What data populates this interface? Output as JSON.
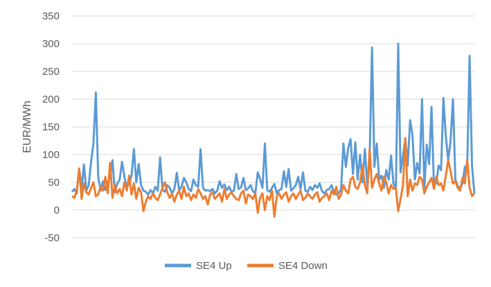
{
  "chart_data": {
    "type": "line",
    "ylabel": "EUR/MWh",
    "xlabel": "",
    "ylim": [
      -50,
      350
    ],
    "yticks": [
      -50,
      0,
      50,
      100,
      150,
      200,
      250,
      300,
      350
    ],
    "grid": true,
    "legend_position": "bottom",
    "x_points": 170,
    "series": [
      {
        "name": "SE4 Up",
        "color": "#5B9BD5",
        "values": [
          33,
          38,
          30,
          75,
          40,
          82,
          35,
          45,
          87,
          120,
          212,
          60,
          35,
          52,
          36,
          50,
          58,
          90,
          32,
          48,
          55,
          87,
          60,
          40,
          48,
          62,
          110,
          50,
          83,
          45,
          35,
          33,
          28,
          36,
          30,
          42,
          35,
          95,
          37,
          33,
          45,
          40,
          30,
          38,
          67,
          35,
          42,
          58,
          50,
          38,
          34,
          55,
          45,
          42,
          110,
          40,
          35,
          36,
          34,
          38,
          30,
          35,
          52,
          40,
          46,
          36,
          42,
          33,
          35,
          65,
          38,
          41,
          58,
          36,
          39,
          45,
          34,
          30,
          68,
          56,
          40,
          120,
          36,
          33,
          40,
          47,
          30,
          36,
          38,
          70,
          42,
          74,
          35,
          39,
          45,
          60,
          38,
          68,
          35,
          33,
          42,
          36,
          45,
          40,
          48,
          34,
          30,
          36,
          38,
          45,
          33,
          28,
          30,
          38,
          120,
          78,
          112,
          128,
          65,
          122,
          55,
          100,
          50,
          110,
          45,
          88,
          293,
          78,
          120,
          55,
          62,
          40,
          72,
          55,
          98,
          48,
          38,
          300,
          68,
          98,
          128,
          80,
          162,
          135,
          55,
          85,
          66,
          200,
          40,
          118,
          83,
          186,
          44,
          48,
          80,
          72,
          202,
          134,
          90,
          125,
          200,
          55,
          44,
          38,
          48,
          78,
          80,
          278,
          80,
          30
        ]
      },
      {
        "name": "SE4 Down",
        "color": "#ED7D31",
        "values": [
          25,
          22,
          35,
          75,
          20,
          48,
          32,
          28,
          40,
          50,
          25,
          28,
          42,
          35,
          60,
          30,
          85,
          22,
          45,
          30,
          38,
          25,
          50,
          35,
          62,
          28,
          48,
          20,
          40,
          32,
          -2,
          15,
          25,
          20,
          30,
          22,
          18,
          28,
          40,
          50,
          32,
          22,
          30,
          15,
          28,
          35,
          20,
          42,
          25,
          30,
          18,
          28,
          22,
          38,
          30,
          20,
          25,
          10,
          28,
          32,
          20,
          25,
          30,
          15,
          38,
          20,
          28,
          32,
          25,
          20,
          18,
          30,
          35,
          12,
          28,
          25,
          20,
          30,
          -5,
          22,
          30,
          0,
          25,
          18,
          35,
          -12,
          25,
          30,
          20,
          28,
          32,
          15,
          25,
          30,
          20,
          28,
          35,
          18,
          22,
          30,
          25,
          20,
          28,
          32,
          15,
          22,
          25,
          30,
          18,
          35,
          28,
          42,
          20,
          28,
          45,
          35,
          30,
          55,
          60,
          42,
          38,
          50,
          80,
          45,
          30,
          110,
          40,
          55,
          65,
          48,
          35,
          60,
          50,
          30,
          45,
          38,
          40,
          -2,
          20,
          45,
          130,
          25,
          55,
          35,
          48,
          45,
          60,
          55,
          30,
          42,
          50,
          58,
          38,
          60,
          45,
          48,
          35,
          62,
          90,
          70,
          48,
          52,
          40,
          35,
          58,
          48,
          90,
          40,
          25,
          30
        ]
      }
    ]
  }
}
